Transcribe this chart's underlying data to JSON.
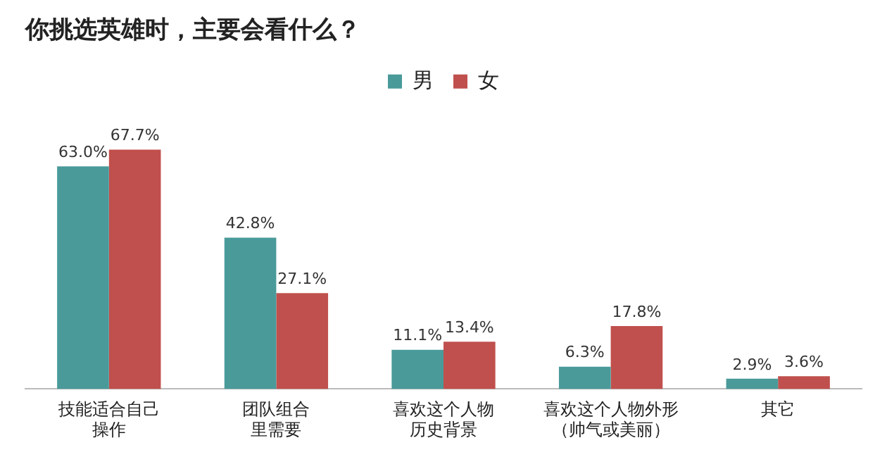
{
  "chart_data": {
    "type": "bar",
    "title": "你挑选英雄时，主要会看什么？",
    "categories": [
      "技能适合自己操作",
      "团队组合里需要",
      "喜欢这个人物历史背景",
      "喜欢这个人物外形（帅气或美丽）",
      "其它"
    ],
    "series": [
      {
        "name": "男",
        "color": "#4a9a9a",
        "values": [
          63.0,
          42.8,
          11.1,
          6.3,
          2.9
        ],
        "value_labels": [
          "63.0%",
          "42.8%",
          "11.1%",
          "6.3%",
          "2.9%"
        ]
      },
      {
        "name": "女",
        "color": "#c0504d",
        "values": [
          67.7,
          27.1,
          13.4,
          17.8,
          3.6
        ],
        "value_labels": [
          "67.7%",
          "27.1%",
          "13.4%",
          "17.8%",
          "3.6%"
        ]
      }
    ],
    "grid": false,
    "legend": "top right"
  }
}
